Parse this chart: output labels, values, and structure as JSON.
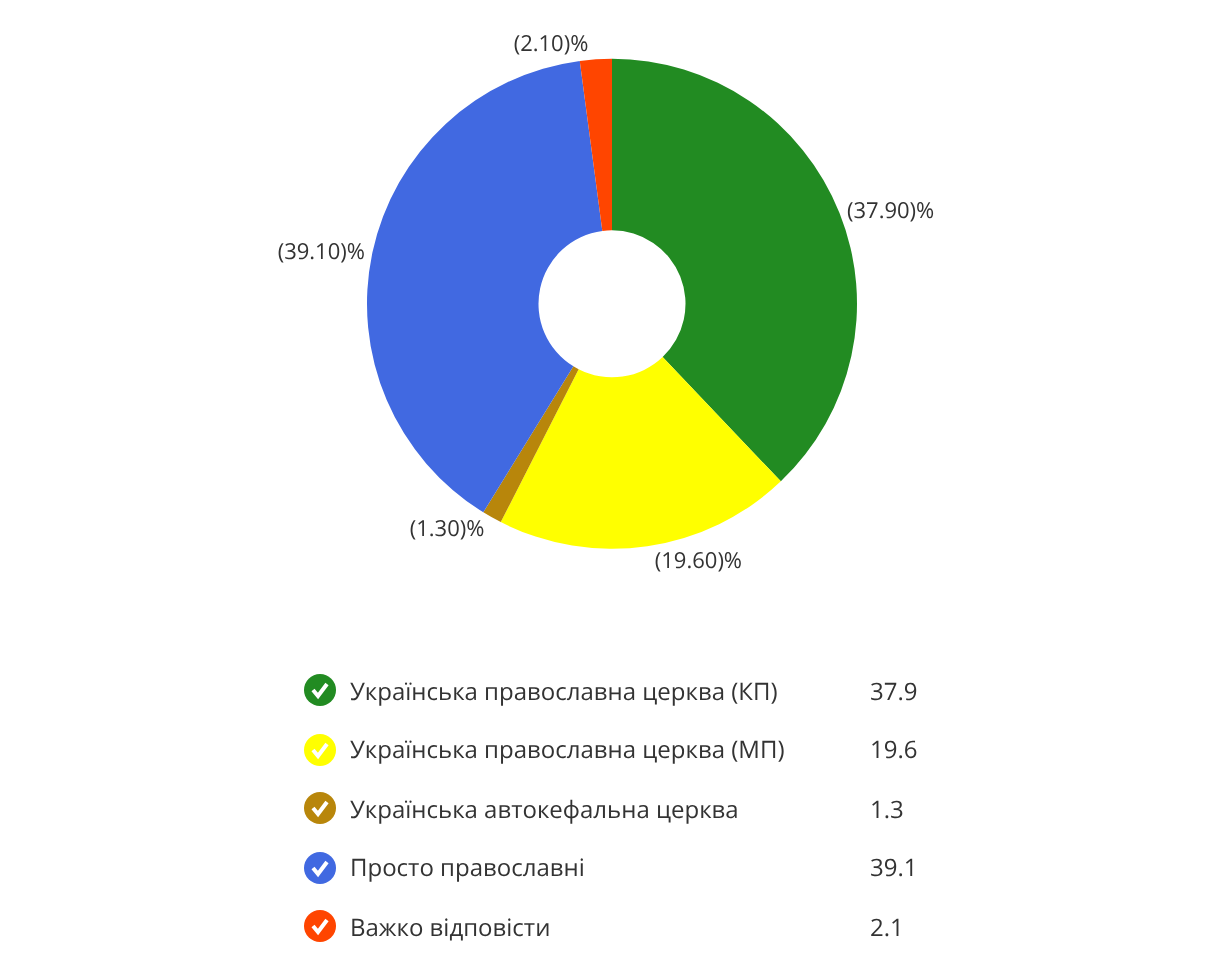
{
  "chart_data": {
    "type": "donut",
    "categories": [
      "Українська православна церква (КП)",
      "Українська православна церква (МП)",
      "Українська автокефальна церква",
      "Просто православні",
      "Важко відповісти"
    ],
    "values": [
      37.9,
      19.6,
      1.3,
      39.1,
      2.1
    ],
    "colors": [
      "#228b22",
      "#ffff00",
      "#b8860b",
      "#4169e1",
      "#ff4500"
    ],
    "value_labels": [
      "(37.90)%",
      "(19.60)%",
      "(1.30)%",
      "(39.10)%",
      "(2.10)%"
    ],
    "annotations": [
      "37.9",
      "19.6",
      "1.3",
      "39.1",
      "2.1"
    ],
    "legend": "bottom"
  }
}
